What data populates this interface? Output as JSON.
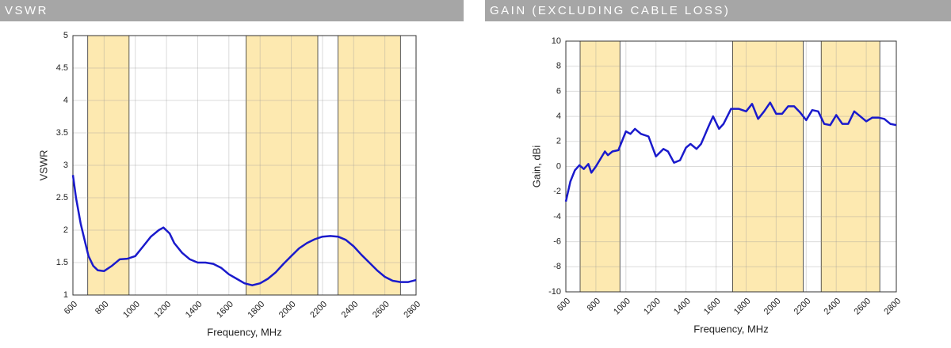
{
  "chart_data": [
    {
      "type": "line",
      "title": "VSWR",
      "xlabel": "Frequency, MHz",
      "ylabel": "VSWR",
      "x": [
        600,
        620,
        650,
        680,
        700,
        730,
        760,
        800,
        850,
        900,
        950,
        1000,
        1050,
        1100,
        1150,
        1180,
        1220,
        1250,
        1300,
        1350,
        1400,
        1450,
        1500,
        1550,
        1600,
        1650,
        1700,
        1750,
        1800,
        1850,
        1900,
        1950,
        2000,
        2050,
        2100,
        2150,
        2200,
        2250,
        2300,
        2350,
        2400,
        2450,
        2500,
        2550,
        2600,
        2650,
        2700,
        2750,
        2800
      ],
      "values": [
        2.85,
        2.5,
        2.1,
        1.8,
        1.6,
        1.45,
        1.38,
        1.37,
        1.45,
        1.55,
        1.56,
        1.6,
        1.75,
        1.9,
        2.0,
        2.04,
        1.95,
        1.8,
        1.65,
        1.55,
        1.5,
        1.5,
        1.48,
        1.42,
        1.32,
        1.25,
        1.18,
        1.15,
        1.18,
        1.25,
        1.35,
        1.48,
        1.6,
        1.72,
        1.8,
        1.86,
        1.9,
        1.91,
        1.9,
        1.85,
        1.75,
        1.62,
        1.5,
        1.38,
        1.28,
        1.22,
        1.2,
        1.2,
        1.23
      ],
      "color": "#1a1acc",
      "band_color": "#fde9b0",
      "bands": [
        [
          695,
          960
        ],
        [
          1710,
          2170
        ],
        [
          2300,
          2700
        ]
      ],
      "xlim": [
        600,
        2800
      ],
      "xticks": [
        600,
        800,
        1000,
        1200,
        1400,
        1600,
        1800,
        2000,
        2200,
        2400,
        2600,
        2800
      ],
      "ylim": [
        1,
        5
      ],
      "yticks": [
        1,
        1.5,
        2,
        2.5,
        3,
        3.5,
        4,
        4.5,
        5
      ],
      "grid": true
    },
    {
      "type": "line",
      "title": "GAIN (EXCLUDING CABLE LOSS)",
      "xlabel": "Frequency, MHz",
      "ylabel": "Gain, dBi",
      "x": [
        600,
        630,
        660,
        690,
        720,
        750,
        770,
        800,
        830,
        860,
        880,
        910,
        950,
        980,
        1000,
        1030,
        1060,
        1100,
        1150,
        1200,
        1250,
        1280,
        1320,
        1360,
        1400,
        1430,
        1470,
        1500,
        1550,
        1580,
        1620,
        1650,
        1700,
        1750,
        1800,
        1840,
        1880,
        1920,
        1960,
        2000,
        2040,
        2080,
        2120,
        2160,
        2200,
        2240,
        2280,
        2320,
        2360,
        2400,
        2440,
        2480,
        2520,
        2560,
        2600,
        2640,
        2680,
        2720,
        2760,
        2800
      ],
      "values": [
        -2.8,
        -1.2,
        -0.3,
        0.1,
        -0.2,
        0.2,
        -0.5,
        0,
        0.6,
        1.2,
        0.9,
        1.2,
        1.3,
        2.2,
        2.8,
        2.6,
        3.0,
        2.6,
        2.4,
        0.8,
        1.4,
        1.2,
        0.3,
        0.5,
        1.5,
        1.8,
        1.4,
        1.8,
        3.2,
        4.0,
        3.0,
        3.4,
        4.6,
        4.6,
        4.4,
        5.0,
        3.8,
        4.4,
        5.1,
        4.2,
        4.2,
        4.8,
        4.8,
        4.3,
        3.7,
        4.5,
        4.4,
        3.4,
        3.3,
        4.1,
        3.4,
        3.4,
        4.4,
        4.0,
        3.6,
        3.9,
        3.9,
        3.8,
        3.4,
        3.3
      ],
      "color": "#1a1acc",
      "band_color": "#fde9b0",
      "bands": [
        [
          695,
          960
        ],
        [
          1710,
          2180
        ],
        [
          2300,
          2690
        ]
      ],
      "xlim": [
        600,
        2800
      ],
      "xticks": [
        600,
        800,
        1000,
        1200,
        1400,
        1600,
        1800,
        2000,
        2200,
        2400,
        2600,
        2800
      ],
      "ylim": [
        -10,
        10
      ],
      "yticks": [
        -10,
        -8,
        -6,
        -4,
        -2,
        0,
        2,
        4,
        6,
        8,
        10
      ],
      "grid": true
    }
  ]
}
